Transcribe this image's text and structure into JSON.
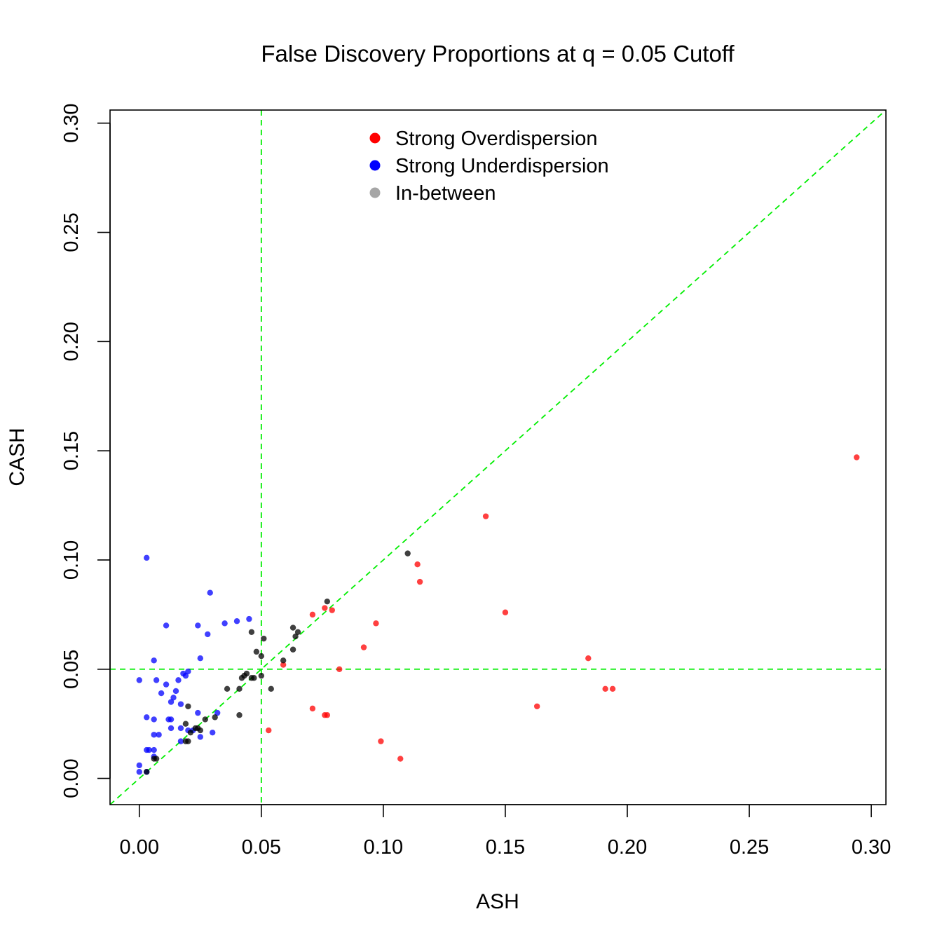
{
  "chart_data": {
    "type": "scatter",
    "title": "False Discovery Proportions at q = 0.05 Cutoff",
    "xlabel": "ASH",
    "ylabel": "CASH",
    "xlim": [
      -0.012,
      0.306
    ],
    "ylim": [
      -0.012,
      0.306
    ],
    "xticks": [
      "0.00",
      "0.05",
      "0.10",
      "0.15",
      "0.20",
      "0.25",
      "0.30"
    ],
    "yticks": [
      "0.00",
      "0.05",
      "0.10",
      "0.15",
      "0.20",
      "0.25",
      "0.30"
    ],
    "grid": false,
    "legend_position": "top-center",
    "reference_lines": [
      {
        "kind": "diagonal",
        "slope": 1,
        "intercept": 0,
        "color": "#00ee00",
        "style": "dashed"
      },
      {
        "kind": "vertical",
        "x": 0.05,
        "color": "#00ee00",
        "style": "dashed"
      },
      {
        "kind": "horizontal",
        "y": 0.05,
        "color": "#00ee00",
        "style": "dashed"
      }
    ],
    "series": [
      {
        "name": "Strong Overdispersion",
        "color": "#ff0000",
        "points": [
          [
            0.294,
            0.147
          ],
          [
            0.142,
            0.12
          ],
          [
            0.114,
            0.098
          ],
          [
            0.115,
            0.09
          ],
          [
            0.15,
            0.076
          ],
          [
            0.071,
            0.075
          ],
          [
            0.076,
            0.078
          ],
          [
            0.079,
            0.077
          ],
          [
            0.097,
            0.071
          ],
          [
            0.092,
            0.06
          ],
          [
            0.184,
            0.055
          ],
          [
            0.059,
            0.052
          ],
          [
            0.082,
            0.05
          ],
          [
            0.191,
            0.041
          ],
          [
            0.194,
            0.041
          ],
          [
            0.163,
            0.033
          ],
          [
            0.071,
            0.032
          ],
          [
            0.076,
            0.029
          ],
          [
            0.077,
            0.029
          ],
          [
            0.053,
            0.022
          ],
          [
            0.099,
            0.017
          ],
          [
            0.107,
            0.009
          ]
        ]
      },
      {
        "name": "Strong Underdispersion",
        "color": "#0000ff",
        "points": [
          [
            0.003,
            0.101
          ],
          [
            0.029,
            0.085
          ],
          [
            0.045,
            0.073
          ],
          [
            0.04,
            0.072
          ],
          [
            0.035,
            0.071
          ],
          [
            0.024,
            0.07
          ],
          [
            0.011,
            0.07
          ],
          [
            0.028,
            0.066
          ],
          [
            0.025,
            0.055
          ],
          [
            0.006,
            0.054
          ],
          [
            0.02,
            0.049
          ],
          [
            0.018,
            0.048
          ],
          [
            0.019,
            0.047
          ],
          [
            0.0,
            0.045
          ],
          [
            0.007,
            0.045
          ],
          [
            0.016,
            0.045
          ],
          [
            0.011,
            0.043
          ],
          [
            0.015,
            0.04
          ],
          [
            0.009,
            0.039
          ],
          [
            0.014,
            0.037
          ],
          [
            0.013,
            0.035
          ],
          [
            0.017,
            0.034
          ],
          [
            0.024,
            0.03
          ],
          [
            0.032,
            0.03
          ],
          [
            0.003,
            0.028
          ],
          [
            0.006,
            0.027
          ],
          [
            0.012,
            0.027
          ],
          [
            0.013,
            0.027
          ],
          [
            0.013,
            0.023
          ],
          [
            0.017,
            0.023
          ],
          [
            0.02,
            0.022
          ],
          [
            0.022,
            0.022
          ],
          [
            0.03,
            0.021
          ],
          [
            0.008,
            0.02
          ],
          [
            0.006,
            0.02
          ],
          [
            0.025,
            0.019
          ],
          [
            0.017,
            0.017
          ],
          [
            0.003,
            0.013
          ],
          [
            0.004,
            0.013
          ],
          [
            0.006,
            0.013
          ],
          [
            0.006,
            0.01
          ],
          [
            0.0,
            0.006
          ],
          [
            0.0,
            0.003
          ],
          [
            0.003,
            0.003
          ]
        ]
      },
      {
        "name": "In-between",
        "color": "#000000",
        "points": [
          [
            0.11,
            0.103
          ],
          [
            0.077,
            0.081
          ],
          [
            0.063,
            0.069
          ],
          [
            0.065,
            0.067
          ],
          [
            0.046,
            0.067
          ],
          [
            0.064,
            0.065
          ],
          [
            0.051,
            0.064
          ],
          [
            0.063,
            0.059
          ],
          [
            0.048,
            0.058
          ],
          [
            0.05,
            0.056
          ],
          [
            0.059,
            0.054
          ],
          [
            0.044,
            0.048
          ],
          [
            0.043,
            0.047
          ],
          [
            0.05,
            0.047
          ],
          [
            0.042,
            0.046
          ],
          [
            0.046,
            0.046
          ],
          [
            0.047,
            0.046
          ],
          [
            0.036,
            0.041
          ],
          [
            0.041,
            0.041
          ],
          [
            0.054,
            0.041
          ],
          [
            0.02,
            0.033
          ],
          [
            0.041,
            0.029
          ],
          [
            0.031,
            0.028
          ],
          [
            0.027,
            0.027
          ],
          [
            0.019,
            0.025
          ],
          [
            0.023,
            0.023
          ],
          [
            0.024,
            0.023
          ],
          [
            0.025,
            0.022
          ],
          [
            0.021,
            0.021
          ],
          [
            0.019,
            0.017
          ],
          [
            0.02,
            0.017
          ],
          [
            0.006,
            0.009
          ],
          [
            0.007,
            0.009
          ],
          [
            0.003,
            0.003
          ]
        ]
      }
    ]
  }
}
